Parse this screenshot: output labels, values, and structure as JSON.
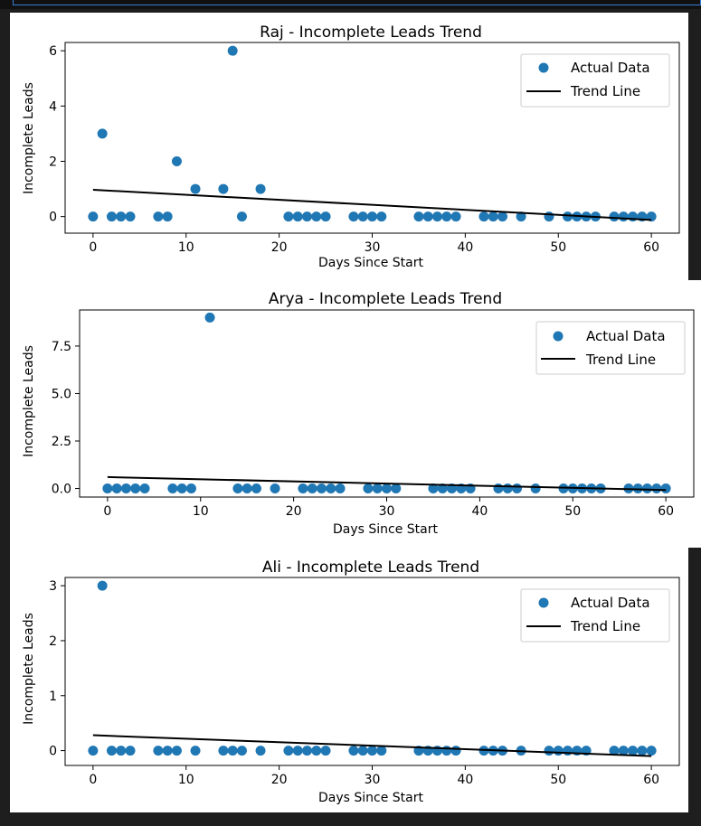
{
  "chart_data": [
    {
      "type": "scatter",
      "title": "Raj - Incomplete Leads Trend",
      "xlabel": "Days Since Start",
      "ylabel": "Incomplete Leads",
      "xlim": [
        -3,
        63
      ],
      "ylim": [
        -0.6,
        6.3
      ],
      "xticks": [
        "0",
        "10",
        "20",
        "30",
        "40",
        "50",
        "60"
      ],
      "yticks": [
        "0",
        "2",
        "4",
        "6"
      ],
      "legend": "top-right",
      "series": [
        {
          "name": "Actual Data",
          "color": "#1f77b4",
          "x": [
            0,
            1,
            2,
            3,
            4,
            7,
            8,
            9,
            11,
            14,
            15,
            16,
            18,
            21,
            22,
            23,
            24,
            25,
            28,
            29,
            30,
            31,
            35,
            36,
            37,
            38,
            39,
            42,
            43,
            44,
            46,
            49,
            51,
            52,
            53,
            54,
            56,
            57,
            58,
            59,
            60
          ],
          "y": [
            0,
            3,
            0,
            0,
            0,
            0,
            0,
            2,
            1,
            1,
            6,
            0,
            1,
            0,
            0,
            0,
            0,
            0,
            0,
            0,
            0,
            0,
            0,
            0,
            0,
            0,
            0,
            0,
            0,
            0,
            0,
            0,
            0,
            0,
            0,
            0,
            0,
            0,
            0,
            0,
            0
          ]
        },
        {
          "name": "Trend Line",
          "color": "#000000",
          "x": [
            0,
            60
          ],
          "y": [
            0.97,
            -0.12
          ]
        }
      ]
    },
    {
      "type": "scatter",
      "title": "Arya - Incomplete Leads Trend",
      "xlabel": "Days Since Start",
      "ylabel": "Incomplete Leads",
      "xlim": [
        -3,
        63
      ],
      "ylim": [
        -0.45,
        9.4
      ],
      "xticks": [
        "0",
        "10",
        "20",
        "30",
        "40",
        "50",
        "60"
      ],
      "yticks": [
        "0.0",
        "2.5",
        "5.0",
        "7.5"
      ],
      "legend": "top-right",
      "series": [
        {
          "name": "Actual Data",
          "color": "#1f77b4",
          "x": [
            0,
            1,
            2,
            3,
            4,
            7,
            8,
            9,
            11,
            14,
            15,
            16,
            18,
            21,
            22,
            23,
            24,
            25,
            28,
            29,
            30,
            31,
            35,
            36,
            37,
            38,
            39,
            42,
            43,
            44,
            46,
            49,
            50,
            51,
            52,
            53,
            56,
            57,
            58,
            59,
            60
          ],
          "y": [
            0,
            0,
            0,
            0,
            0,
            0,
            0,
            0,
            9,
            0,
            0,
            0,
            0,
            0,
            0,
            0,
            0,
            0,
            0,
            0,
            0,
            0,
            0,
            0,
            0,
            0,
            0,
            0,
            0,
            0,
            0,
            0,
            0,
            0,
            0,
            0,
            0,
            0,
            0,
            0,
            0
          ]
        },
        {
          "name": "Trend Line",
          "color": "#000000",
          "x": [
            0,
            60
          ],
          "y": [
            0.6,
            -0.08
          ]
        }
      ]
    },
    {
      "type": "scatter",
      "title": "Ali - Incomplete Leads Trend",
      "xlabel": "Days Since Start",
      "ylabel": "Incomplete Leads",
      "xlim": [
        -3,
        63
      ],
      "ylim": [
        -0.27,
        3.15
      ],
      "xticks": [
        "0",
        "10",
        "20",
        "30",
        "40",
        "50",
        "60"
      ],
      "yticks": [
        "0",
        "1",
        "2",
        "3"
      ],
      "legend": "top-right",
      "series": [
        {
          "name": "Actual Data",
          "color": "#1f77b4",
          "x": [
            0,
            1,
            2,
            3,
            4,
            7,
            8,
            9,
            11,
            14,
            15,
            16,
            18,
            21,
            22,
            23,
            24,
            25,
            28,
            29,
            30,
            31,
            35,
            36,
            37,
            38,
            39,
            42,
            43,
            44,
            46,
            49,
            50,
            51,
            52,
            53,
            56,
            57,
            58,
            59,
            60
          ],
          "y": [
            0,
            3,
            0,
            0,
            0,
            0,
            0,
            0,
            0,
            0,
            0,
            0,
            0,
            0,
            0,
            0,
            0,
            0,
            0,
            0,
            0,
            0,
            0,
            0,
            0,
            0,
            0,
            0,
            0,
            0,
            0,
            0,
            0,
            0,
            0,
            0,
            0,
            0,
            0,
            0,
            0
          ]
        },
        {
          "name": "Trend Line",
          "color": "#000000",
          "x": [
            0,
            60
          ],
          "y": [
            0.28,
            -0.1
          ]
        }
      ]
    }
  ]
}
